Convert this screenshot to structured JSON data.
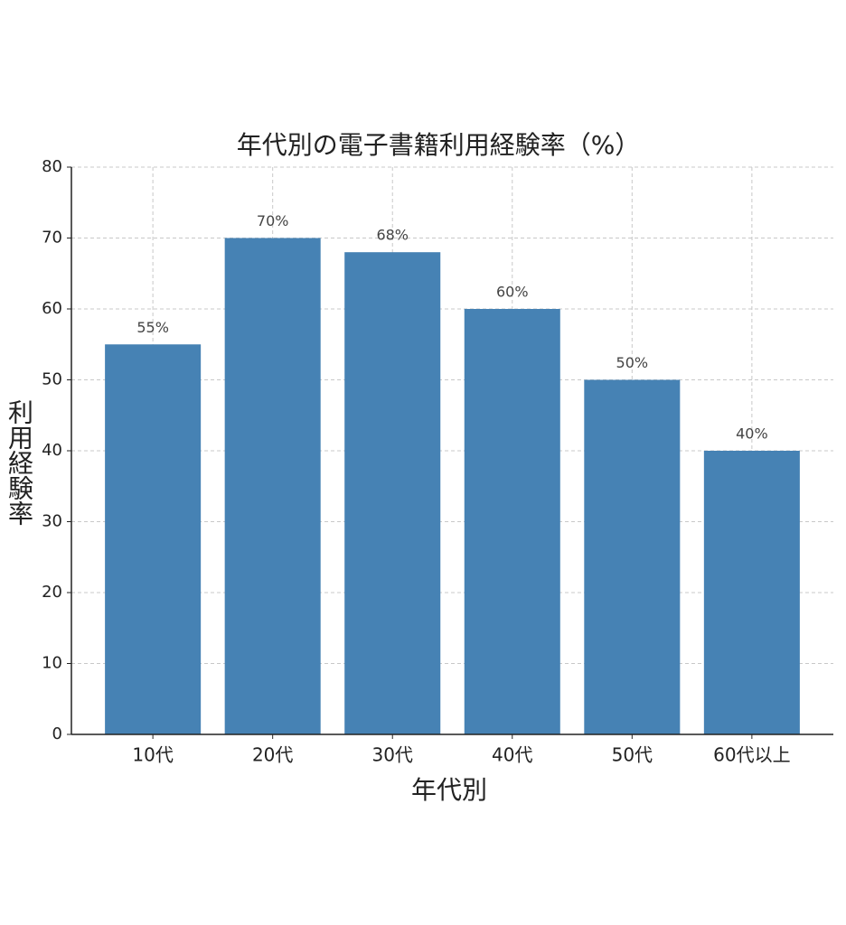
{
  "chart_data": {
    "type": "bar",
    "title": "年代別の電子書籍利用経験率（%）",
    "x_label": "年代別",
    "y_label": "利用経験率",
    "categories": [
      "10代",
      "20代",
      "30代",
      "40代",
      "50代",
      "60代以上"
    ],
    "values": [
      55,
      70,
      68,
      60,
      50,
      40
    ],
    "value_labels": [
      "55%",
      "70%",
      "68%",
      "60%",
      "50%",
      "40%"
    ],
    "color": "#4682b4",
    "ylim": [
      0,
      80
    ],
    "yticks": [
      0,
      10,
      20,
      30,
      40,
      50,
      60,
      70,
      80
    ],
    "grid": true
  }
}
